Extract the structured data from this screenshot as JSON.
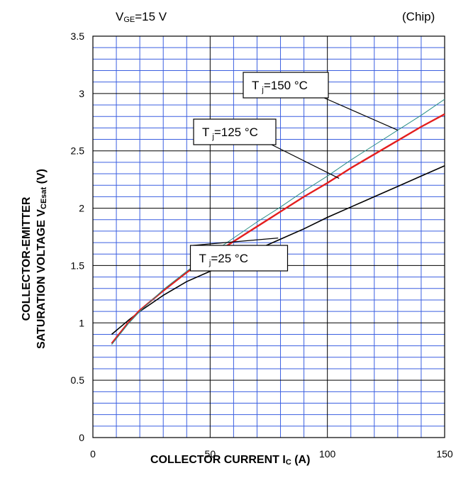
{
  "header": {
    "vge_main": "V",
    "vge_sub": "GE",
    "vge_rest": "=15 V",
    "chip": "(Chip)"
  },
  "axes": {
    "x_label_main": "COLLECTOR CURRENT   I",
    "x_label_sub": "C",
    "x_label_unit": " (A)",
    "y_label_line1": "COLLECTOR-EMITTER",
    "y_label_line2_main": "SATURATION VOLTAGE   V",
    "y_label_line2_sub": "CEsat",
    "y_label_line2_unit": " (V)"
  },
  "chart_data": {
    "type": "line",
    "xlim": [
      0,
      150
    ],
    "ylim": [
      0,
      3.5
    ],
    "x_ticks": [
      "0",
      "50",
      "100",
      "150"
    ],
    "y_ticks": [
      "0",
      "0.5",
      "1",
      "1.5",
      "2",
      "2.5",
      "3",
      "3.5"
    ],
    "grid": true,
    "series": [
      {
        "name": "T j =25 °C",
        "label_main": "T",
        "label_sub": "j",
        "label_rest": "=25 °C",
        "color": "#000000",
        "x": [
          8,
          15,
          20,
          30,
          40,
          50,
          60,
          70,
          80,
          90,
          100,
          110,
          120,
          130,
          140,
          150
        ],
        "y": [
          0.9,
          1.02,
          1.1,
          1.24,
          1.36,
          1.45,
          1.55,
          1.64,
          1.73,
          1.82,
          1.92,
          2.01,
          2.1,
          2.19,
          2.28,
          2.37
        ]
      },
      {
        "name": "T j =125 °C",
        "label_main": "T",
        "label_sub": "j",
        "label_rest": "=125 °C",
        "color": "#e41e1e",
        "x": [
          8,
          15,
          20,
          30,
          40,
          50,
          60,
          70,
          80,
          90,
          100,
          110,
          120,
          130,
          140,
          150
        ],
        "y": [
          0.82,
          1.0,
          1.11,
          1.28,
          1.44,
          1.58,
          1.71,
          1.84,
          1.97,
          2.1,
          2.22,
          2.35,
          2.47,
          2.59,
          2.71,
          2.82
        ]
      },
      {
        "name": "T j =150 °C",
        "label_main": "T",
        "label_sub": "j",
        "label_rest": "=150 °C",
        "color": "#2a8f86",
        "x": [
          8,
          15,
          20,
          30,
          40,
          50,
          60,
          70,
          80,
          90,
          100,
          110,
          120,
          130,
          140,
          150
        ],
        "y": [
          0.81,
          0.99,
          1.1,
          1.29,
          1.45,
          1.6,
          1.74,
          1.88,
          2.01,
          2.15,
          2.28,
          2.42,
          2.55,
          2.68,
          2.81,
          2.95
        ]
      }
    ]
  }
}
